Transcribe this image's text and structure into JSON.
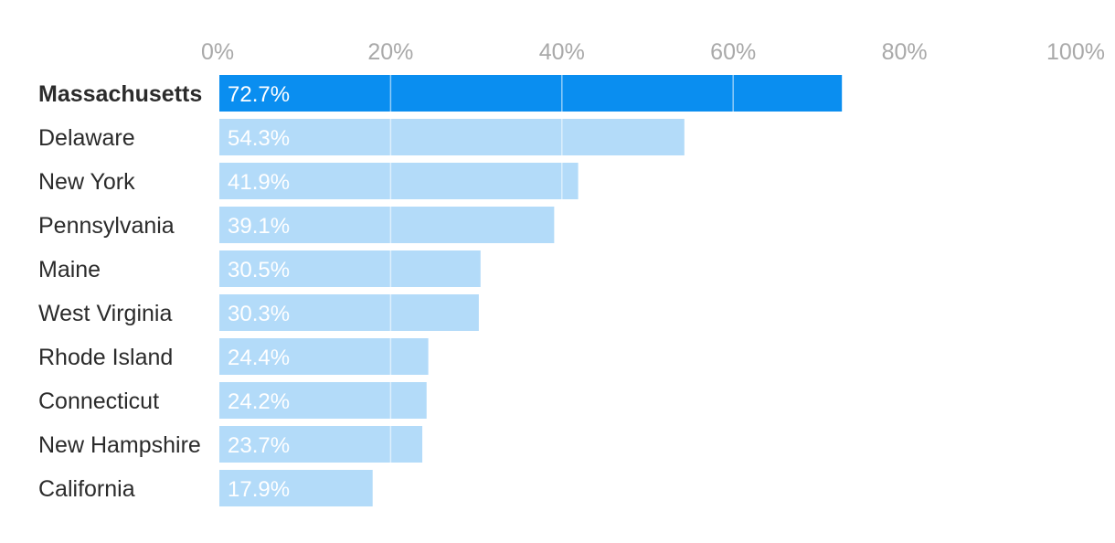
{
  "chart_data": {
    "type": "bar",
    "orientation": "horizontal",
    "title": "",
    "xlabel": "",
    "ylabel": "",
    "xlim": [
      0,
      100
    ],
    "ticks": [
      {
        "value": 0,
        "label": "0%"
      },
      {
        "value": 20,
        "label": "20%"
      },
      {
        "value": 40,
        "label": "40%"
      },
      {
        "value": 60,
        "label": "60%"
      },
      {
        "value": 80,
        "label": "80%"
      },
      {
        "value": 100,
        "label": "100%"
      }
    ],
    "gridlines": true,
    "highlight_color": "#0a8ef0",
    "bar_color": "#b3dbf9",
    "categories": [
      "Massachusetts",
      "Delaware",
      "New York",
      "Pennsylvania",
      "Maine",
      "West Virginia",
      "Rhode Island",
      "Connecticut",
      "New Hampshire",
      "California"
    ],
    "values": [
      72.7,
      54.3,
      41.9,
      39.1,
      30.5,
      30.3,
      24.4,
      24.2,
      23.7,
      17.9
    ],
    "value_labels": [
      "72.7%",
      "54.3%",
      "41.9%",
      "39.1%",
      "30.5%",
      "30.3%",
      "24.4%",
      "24.2%",
      "23.7%",
      "17.9%"
    ],
    "highlighted": "Massachusetts"
  }
}
